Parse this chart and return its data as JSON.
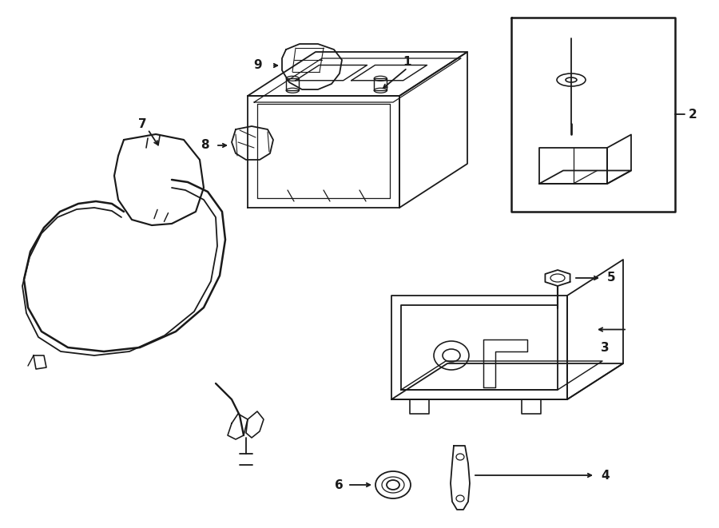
{
  "bg_color": "#ffffff",
  "line_color": "#1a1a1a",
  "line_width": 1.3,
  "fig_width": 9.0,
  "fig_height": 6.61,
  "xlim": [
    0,
    900
  ],
  "ylim": [
    0,
    661
  ]
}
